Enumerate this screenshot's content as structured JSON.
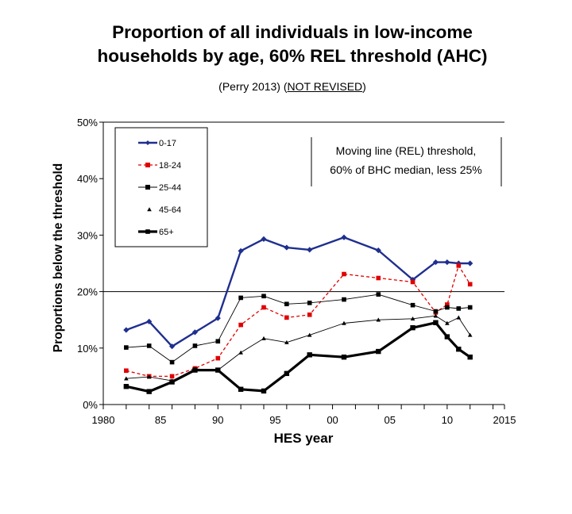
{
  "title_line1": "Proportion of all individuals in low-income",
  "title_line2": "households by age, 60% REL threshold (AHC)",
  "subtitle_part1": "(Perry 2013) (",
  "subtitle_link": "NOT REVISED",
  "subtitle_part2": ")",
  "note_line1": "Moving line (REL) threshold,",
  "note_line2": "60% of  BHC median, less 25%",
  "chart_data": {
    "type": "line",
    "title": "Proportion of all individuals in low-income households by age, 60% REL threshold (AHC)",
    "xlabel": "HES year",
    "ylabel": "Proportions below the threshold",
    "xlim": [
      1980,
      2015
    ],
    "ylim": [
      0,
      0.5
    ],
    "x_ticks": [
      1980,
      1985,
      1990,
      1995,
      2000,
      2005,
      2010,
      2015
    ],
    "x_tick_labels": [
      "1980",
      "85",
      "90",
      "95",
      "00",
      "05",
      "10",
      "2015"
    ],
    "y_ticks": [
      0,
      0.1,
      0.2,
      0.3,
      0.4,
      0.5
    ],
    "y_tick_labels": [
      "0%",
      "10%",
      "20%",
      "30%",
      "40%",
      "50%"
    ],
    "grid": "horizontal at 20% and 50%",
    "legend_position": "top-left",
    "series": [
      {
        "name": "0-17",
        "color": "#1f2f8f",
        "marker": "diamond",
        "line": "solid",
        "x": [
          1982,
          1984,
          1986,
          1988,
          1990,
          1992,
          1994,
          1996,
          1998,
          2001,
          2004,
          2007,
          2009,
          2010,
          2011,
          2012
        ],
        "values": [
          0.132,
          0.147,
          0.103,
          0.128,
          0.153,
          0.272,
          0.293,
          0.278,
          0.274,
          0.296,
          0.273,
          0.221,
          0.252,
          0.252,
          0.25,
          0.25
        ]
      },
      {
        "name": "18-24",
        "color": "#e00000",
        "marker": "square",
        "line": "dashed",
        "x": [
          1982,
          1984,
          1986,
          1988,
          1990,
          1992,
          1994,
          1996,
          1998,
          2001,
          2004,
          2007,
          2009,
          2010,
          2011,
          2012
        ],
        "values": [
          0.06,
          0.05,
          0.05,
          0.064,
          0.082,
          0.141,
          0.172,
          0.154,
          0.159,
          0.231,
          0.224,
          0.217,
          0.163,
          0.177,
          0.246,
          0.213
        ]
      },
      {
        "name": "25-44",
        "color": "#000000",
        "marker": "square",
        "line": "thin",
        "x": [
          1982,
          1984,
          1986,
          1988,
          1990,
          1992,
          1994,
          1996,
          1998,
          2001,
          2004,
          2007,
          2009,
          2010,
          2011,
          2012
        ],
        "values": [
          0.101,
          0.104,
          0.075,
          0.104,
          0.112,
          0.189,
          0.192,
          0.178,
          0.18,
          0.186,
          0.195,
          0.176,
          0.165,
          0.172,
          0.17,
          0.172
        ]
      },
      {
        "name": "45-64",
        "color": "#000000",
        "marker": "triangle",
        "line": "thin",
        "x": [
          1982,
          1984,
          1986,
          1988,
          1990,
          1992,
          1994,
          1996,
          1998,
          2001,
          2004,
          2007,
          2009,
          2010,
          2011,
          2012
        ],
        "values": [
          0.046,
          0.049,
          0.042,
          0.063,
          0.061,
          0.092,
          0.117,
          0.11,
          0.123,
          0.144,
          0.15,
          0.152,
          0.157,
          0.144,
          0.154,
          0.123
        ]
      },
      {
        "name": "65+",
        "color": "#000000",
        "marker": "square",
        "line": "thick",
        "x": [
          1982,
          1984,
          1986,
          1988,
          1990,
          1992,
          1994,
          1996,
          1998,
          2001,
          2004,
          2007,
          2009,
          2010,
          2011,
          2012
        ],
        "values": [
          0.032,
          0.023,
          0.04,
          0.061,
          0.061,
          0.027,
          0.024,
          0.055,
          0.088,
          0.084,
          0.094,
          0.136,
          0.145,
          0.12,
          0.098,
          0.084
        ]
      }
    ]
  }
}
